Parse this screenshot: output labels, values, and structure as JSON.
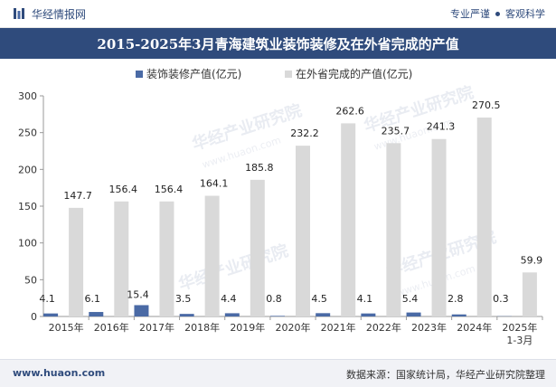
{
  "header": {
    "brand": "华经情报网",
    "slogan_left": "专业严谨",
    "slogan_right": "客观科学"
  },
  "chart_data": {
    "type": "bar",
    "title": "2015-2025年3月青海建筑业装饰装修及在外省完成的产值",
    "categories": [
      "2015年",
      "2016年",
      "2017年",
      "2018年",
      "2019年",
      "2020年",
      "2021年",
      "2022年",
      "2023年",
      "2024年",
      "2025年\n1-3月"
    ],
    "series": [
      {
        "name": "装饰装修产值(亿元)",
        "color": "#4a6aa5",
        "values": [
          4.1,
          6.1,
          15.4,
          3.5,
          4.4,
          0.8,
          4.5,
          4.1,
          5.4,
          2.8,
          0.3
        ]
      },
      {
        "name": "在外省完成的产值(亿元)",
        "color": "#d9d9d9",
        "values": [
          147.7,
          156.4,
          156.4,
          164.1,
          185.8,
          232.2,
          262.6,
          235.7,
          241.3,
          270.5,
          59.9
        ]
      }
    ],
    "ylim": [
      0,
      300
    ],
    "yticks": [
      0,
      50,
      100,
      150,
      200,
      250,
      300
    ],
    "grid": false,
    "legend": "top-center"
  },
  "watermarks": [
    "华经产业研究院",
    "www.huaon.com"
  ],
  "footer": {
    "site": "www.huaon.com",
    "source": "数据来源：国家统计局，华经产业研究院整理"
  }
}
